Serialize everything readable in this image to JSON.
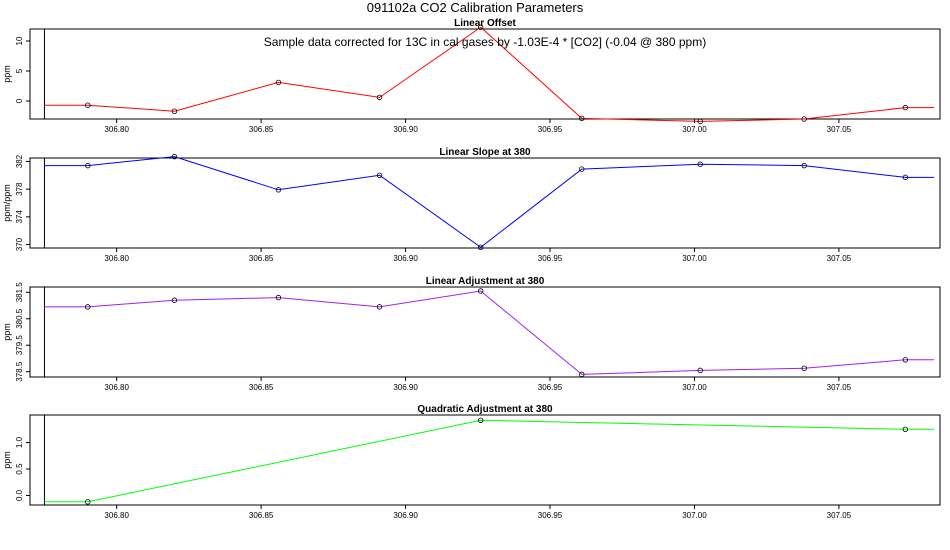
{
  "page_title": "091102a   CO2 Calibration Parameters",
  "annotation": "Sample data corrected for 13C in cal gases by -1.03E-4 * [CO2] (-0.04 @ 380 ppm)",
  "colors": {
    "axis": "#000000",
    "reference_line": "#000000"
  },
  "reference_line_x": 306.775,
  "chart_data": [
    {
      "type": "line",
      "title": "Linear Offset",
      "ylabel": "ppm",
      "xlabel": "",
      "xlim": [
        306.77,
        307.085
      ],
      "ylim": [
        -3,
        12
      ],
      "x_ticks": [
        "306.80",
        "306.85",
        "306.90",
        "306.95",
        "307.00",
        "307.05"
      ],
      "y_ticks": [
        "0",
        "5",
        "10"
      ],
      "color": "#ff0000",
      "points": [
        {
          "x": 306.79,
          "y": -0.7
        },
        {
          "x": 306.82,
          "y": -1.7
        },
        {
          "x": 306.856,
          "y": 3.1
        },
        {
          "x": 306.891,
          "y": 0.6
        },
        {
          "x": 306.926,
          "y": 12.3
        },
        {
          "x": 306.961,
          "y": -2.9
        },
        {
          "x": 307.002,
          "y": -3.4
        },
        {
          "x": 307.038,
          "y": -3.0
        },
        {
          "x": 307.073,
          "y": -1.1
        }
      ],
      "line_extent": [
        306.775,
        307.083
      ]
    },
    {
      "type": "line",
      "title": "Linear Slope at 380",
      "ylabel": "ppm/ppm",
      "xlabel": "",
      "xlim": [
        306.77,
        307.085
      ],
      "ylim": [
        369.5,
        382.5
      ],
      "x_ticks": [
        "306.80",
        "306.85",
        "306.90",
        "306.95",
        "307.00",
        "307.05"
      ],
      "y_ticks": [
        "370",
        "374",
        "378",
        "382"
      ],
      "color": "#0000ff",
      "points": [
        {
          "x": 306.79,
          "y": 381.4
        },
        {
          "x": 306.82,
          "y": 382.7
        },
        {
          "x": 306.856,
          "y": 377.9
        },
        {
          "x": 306.891,
          "y": 380.0
        },
        {
          "x": 306.926,
          "y": 369.6
        },
        {
          "x": 306.961,
          "y": 380.9
        },
        {
          "x": 307.002,
          "y": 381.6
        },
        {
          "x": 307.038,
          "y": 381.4
        },
        {
          "x": 307.073,
          "y": 379.7
        }
      ],
      "line_extent": [
        306.775,
        307.083
      ]
    },
    {
      "type": "line",
      "title": "Linear Adjustment at 380",
      "ylabel": "ppm",
      "xlabel": "",
      "xlim": [
        306.77,
        307.085
      ],
      "ylim": [
        378.3,
        381.7
      ],
      "x_ticks": [
        "306.80",
        "306.85",
        "306.90",
        "306.95",
        "307.00",
        "307.05"
      ],
      "y_ticks": [
        "378.5",
        "379.5",
        "380.5",
        "381.5"
      ],
      "color": "#a020f0",
      "points": [
        {
          "x": 306.79,
          "y": 380.95
        },
        {
          "x": 306.82,
          "y": 381.2
        },
        {
          "x": 306.856,
          "y": 381.3
        },
        {
          "x": 306.891,
          "y": 380.95
        },
        {
          "x": 306.926,
          "y": 381.55
        },
        {
          "x": 306.961,
          "y": 378.4
        },
        {
          "x": 307.002,
          "y": 378.55
        },
        {
          "x": 307.038,
          "y": 378.63
        },
        {
          "x": 307.073,
          "y": 378.95
        }
      ],
      "line_extent": [
        306.775,
        307.083
      ]
    },
    {
      "type": "line",
      "title": "Quadratic Adjustment at 380",
      "ylabel": "ppm",
      "xlabel": "",
      "xlim": [
        306.77,
        307.085
      ],
      "ylim": [
        -0.18,
        1.52
      ],
      "x_ticks": [
        "306.80",
        "306.85",
        "306.90",
        "306.95",
        "307.00",
        "307.05"
      ],
      "y_ticks": [
        "0.0",
        "0.5",
        "1.0"
      ],
      "color": "#00ff00",
      "points": [
        {
          "x": 306.79,
          "y": -0.12
        },
        {
          "x": 306.926,
          "y": 1.42
        },
        {
          "x": 307.073,
          "y": 1.25
        }
      ],
      "line_extent": [
        306.775,
        307.083
      ]
    }
  ]
}
